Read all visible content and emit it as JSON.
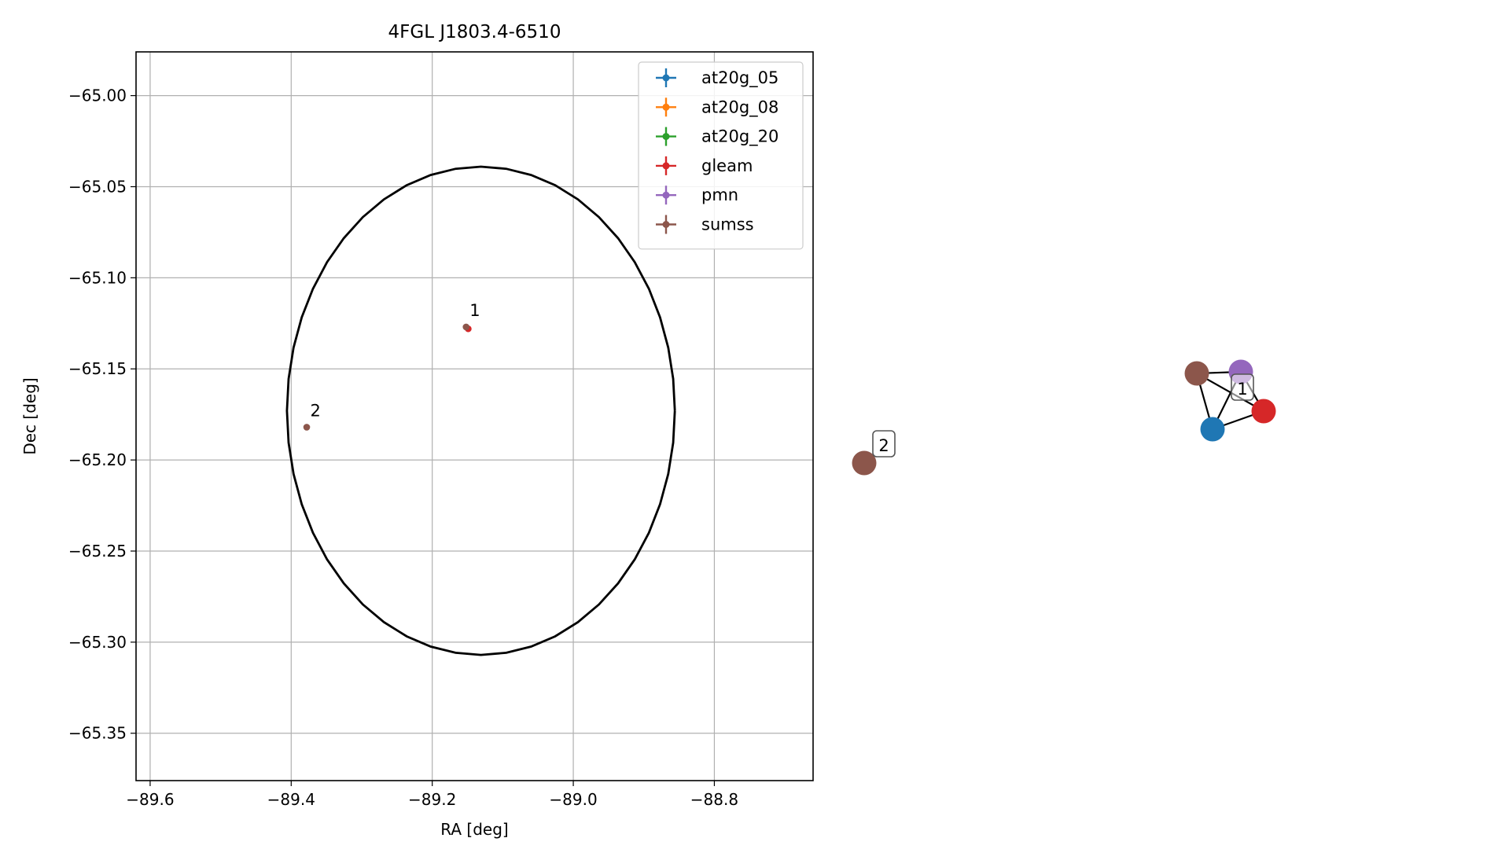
{
  "chart_data": [
    {
      "type": "scatter",
      "title": "4FGL J1803.4-6510",
      "xlabel": "RA [deg]",
      "ylabel": "Dec [deg]",
      "xlim": [
        -89.62,
        -88.66
      ],
      "ylim": [
        -65.376,
        -64.976
      ],
      "x_reversed": false,
      "grid": true,
      "xticks": [
        -89.6,
        -89.4,
        -89.2,
        -89.0,
        -88.8
      ],
      "xtick_labels": [
        "−89.6",
        "−89.4",
        "−89.2",
        "−89.0",
        "−88.8"
      ],
      "yticks": [
        -65.0,
        -65.05,
        -65.1,
        -65.15,
        -65.2,
        -65.25,
        -65.3,
        -65.35
      ],
      "ytick_labels": [
        "−65.00",
        "−65.05",
        "−65.10",
        "−65.15",
        "−65.20",
        "−65.25",
        "−65.30",
        "−65.35"
      ],
      "legend_position": "upper right",
      "ellipse": {
        "center_ra": -89.131,
        "center_dec": -65.173,
        "semi_axis_ra": 0.275,
        "semi_axis_dec": 0.134,
        "color": "#000000"
      },
      "series": [
        {
          "name": "at20g_05",
          "color": "#1f77b4",
          "points": []
        },
        {
          "name": "at20g_08",
          "color": "#ff7f0e",
          "points": []
        },
        {
          "name": "at20g_20",
          "color": "#2ca02c",
          "points": []
        },
        {
          "name": "gleam",
          "color": "#d62728",
          "points": [
            {
              "x": -89.149,
              "y": -65.128
            }
          ]
        },
        {
          "name": "pmn",
          "color": "#9467bd",
          "points": []
        },
        {
          "name": "sumss",
          "color": "#8c564b",
          "points": [
            {
              "x": -89.152,
              "y": -65.127
            },
            {
              "x": -89.378,
              "y": -65.182
            }
          ]
        }
      ],
      "annotations": [
        {
          "text": "1",
          "x": -89.147,
          "y": -65.121
        },
        {
          "text": "2",
          "x": -89.373,
          "y": -65.176
        }
      ]
    },
    {
      "type": "network",
      "nodes": [
        {
          "id": "n2",
          "color": "#8c564b"
        },
        {
          "id": "n_sumss",
          "color": "#8c564b"
        },
        {
          "id": "n_pmn",
          "color": "#9467bd"
        },
        {
          "id": "n_gleam",
          "color": "#d62728"
        },
        {
          "id": "n_at20g",
          "color": "#1f77b4"
        }
      ],
      "edges": [
        [
          "n_sumss",
          "n_pmn"
        ],
        [
          "n_sumss",
          "n_at20g"
        ],
        [
          "n_sumss",
          "n_gleam"
        ],
        [
          "n_pmn",
          "n_gleam"
        ],
        [
          "n_pmn",
          "n_at20g"
        ],
        [
          "n_gleam",
          "n_at20g"
        ]
      ],
      "labels": [
        {
          "text": "1"
        },
        {
          "text": "2"
        }
      ]
    }
  ]
}
